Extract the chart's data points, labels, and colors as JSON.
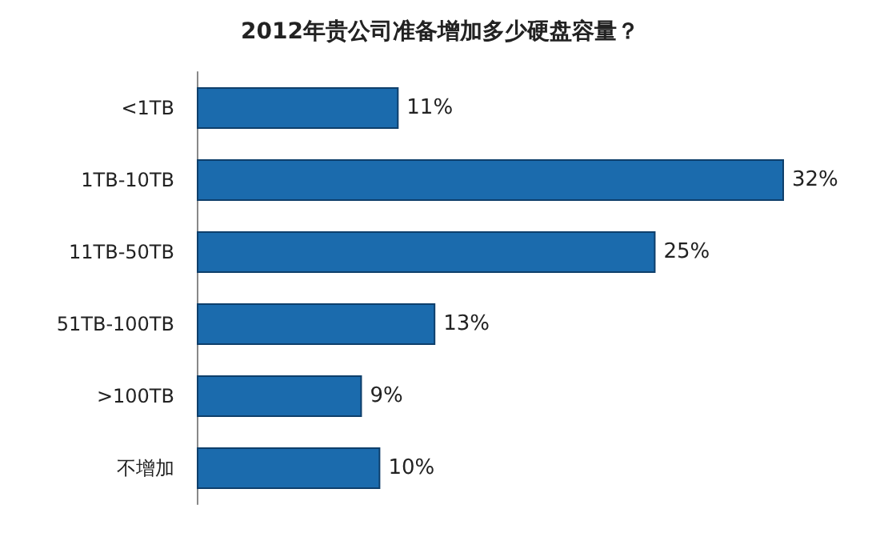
{
  "chart_data": {
    "type": "bar",
    "orientation": "horizontal",
    "title": "2012年贵公司准备增加多少硬盘容量？",
    "categories": [
      "<1TB",
      "1TB-10TB",
      "11TB-50TB",
      "51TB-100TB",
      ">100TB",
      "不增加"
    ],
    "values": [
      11,
      32,
      25,
      13,
      9,
      10
    ],
    "value_labels": [
      "11%",
      "32%",
      "25%",
      "13%",
      "9%",
      "10%"
    ],
    "color": "#1b6bad"
  }
}
